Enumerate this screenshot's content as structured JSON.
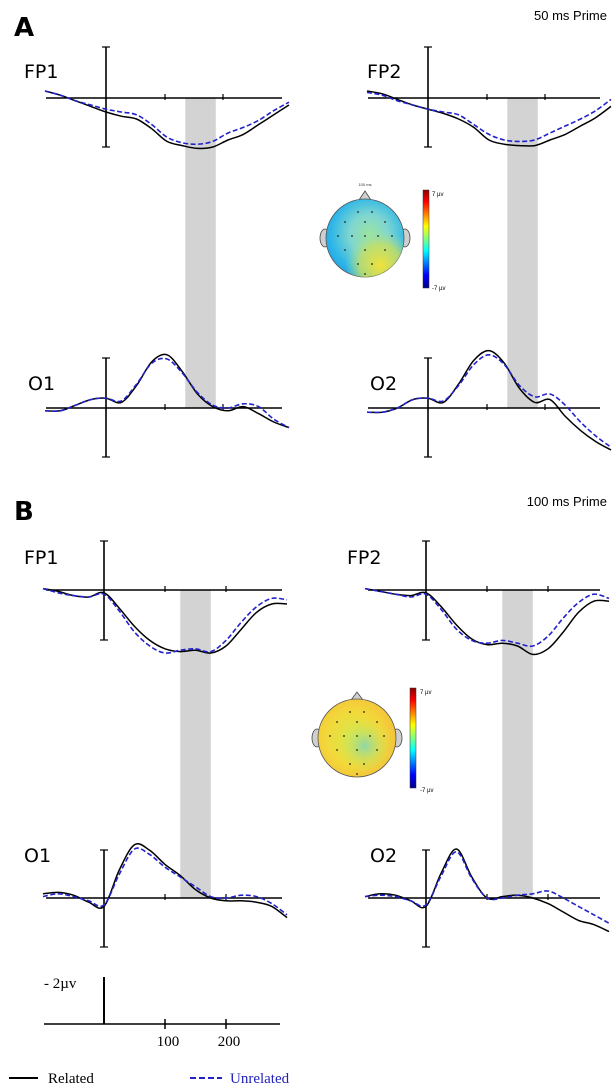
{
  "panels": [
    {
      "letter": "A",
      "condition": "50 ms Prime",
      "topo": {
        "title": "100 ms",
        "cbar_max": "7 µv",
        "cbar_min": "-7 µv"
      }
    },
    {
      "letter": "B",
      "condition": "100 ms Prime",
      "topo": {
        "title": "",
        "cbar_max": "7 µv",
        "cbar_min": "-7 µv"
      }
    }
  ],
  "scale": {
    "amplitude": "2µv",
    "tick_labels": [
      "100",
      "200"
    ]
  },
  "legend": {
    "related": "Related",
    "unrelated": "Unrelated"
  },
  "colors": {
    "related": "#000000",
    "unrelated": "#2222cc",
    "highlight": "#d3d3d3"
  },
  "chart_data": [
    {
      "type": "line",
      "panel": "A",
      "x_unit": "ms",
      "y_unit": "µV",
      "highlight_window": [
        130,
        180
      ],
      "plots": [
        {
          "channel": "FP1",
          "x": [
            -100,
            -75,
            -50,
            -25,
            0,
            25,
            50,
            75,
            100,
            125,
            150,
            175,
            200,
            225,
            250,
            275,
            300
          ],
          "series": [
            {
              "name": "Related",
              "values": [
                0.5,
                0.2,
                -0.2,
                -0.6,
                -1.0,
                -1.3,
                -1.5,
                -2.2,
                -3.1,
                -3.4,
                -3.6,
                -3.5,
                -3.0,
                -2.6,
                -1.9,
                -1.2,
                -0.5
              ]
            },
            {
              "name": "Unrelated",
              "values": [
                0.5,
                0.2,
                -0.2,
                -0.5,
                -0.8,
                -1.0,
                -1.2,
                -1.9,
                -2.8,
                -3.2,
                -3.3,
                -3.1,
                -2.5,
                -2.1,
                -1.6,
                -0.9,
                -0.3
              ]
            }
          ]
        },
        {
          "channel": "FP2",
          "x": [
            -100,
            -75,
            -50,
            -25,
            0,
            25,
            50,
            75,
            100,
            125,
            150,
            175,
            200,
            225,
            250,
            275,
            300
          ],
          "series": [
            {
              "name": "Related",
              "values": [
                0.5,
                0.3,
                -0.1,
                -0.5,
                -0.8,
                -1.1,
                -1.5,
                -2.1,
                -3.0,
                -3.3,
                -3.4,
                -3.4,
                -3.0,
                -2.6,
                -2.0,
                -1.4,
                -0.6
              ]
            },
            {
              "name": "Unrelated",
              "values": [
                0.4,
                0.2,
                -0.2,
                -0.5,
                -0.8,
                -1.0,
                -1.2,
                -1.9,
                -2.6,
                -3.0,
                -3.1,
                -3.0,
                -2.5,
                -2.0,
                -1.5,
                -0.9,
                -0.1
              ]
            }
          ]
        },
        {
          "channel": "O1",
          "x": [
            -100,
            -75,
            -50,
            -25,
            0,
            25,
            50,
            75,
            100,
            125,
            150,
            175,
            200,
            225,
            250,
            275,
            300
          ],
          "series": [
            {
              "name": "Related",
              "values": [
                -0.2,
                -0.2,
                0.2,
                0.6,
                0.7,
                0.4,
                1.6,
                3.3,
                3.8,
                2.6,
                1.0,
                0.1,
                -0.2,
                0.1,
                -0.4,
                -1.0,
                -1.4
              ]
            },
            {
              "name": "Unrelated",
              "values": [
                -0.2,
                -0.2,
                0.2,
                0.6,
                0.7,
                0.5,
                1.7,
                3.2,
                3.5,
                2.5,
                1.1,
                0.2,
                0.0,
                0.3,
                0.1,
                -0.8,
                -1.4
              ]
            }
          ]
        },
        {
          "channel": "O2",
          "x": [
            -100,
            -75,
            -50,
            -25,
            0,
            25,
            50,
            75,
            100,
            125,
            150,
            175,
            200,
            225,
            250,
            275,
            300
          ],
          "series": [
            {
              "name": "Related",
              "values": [
                -0.3,
                -0.3,
                0.0,
                0.6,
                0.7,
                0.4,
                1.7,
                3.4,
                4.1,
                3.2,
                1.4,
                0.4,
                0.6,
                -0.6,
                -1.6,
                -2.4,
                -3.0
              ]
            },
            {
              "name": "Unrelated",
              "values": [
                -0.3,
                -0.3,
                0.0,
                0.6,
                0.7,
                0.5,
                1.6,
                3.1,
                3.8,
                3.1,
                1.6,
                0.8,
                1.0,
                0.2,
                -1.0,
                -2.0,
                -2.8
              ]
            }
          ]
        }
      ]
    },
    {
      "type": "line",
      "panel": "B",
      "x_unit": "ms",
      "y_unit": "µV",
      "highlight_window": [
        125,
        175
      ],
      "plots": [
        {
          "channel": "FP1",
          "x": [
            -100,
            -75,
            -50,
            -25,
            0,
            25,
            50,
            75,
            100,
            125,
            150,
            175,
            200,
            225,
            250,
            275,
            300
          ],
          "series": [
            {
              "name": "Related",
              "values": [
                0.1,
                -0.1,
                -0.4,
                -0.5,
                -0.2,
                -1.3,
                -2.6,
                -3.6,
                -4.2,
                -4.4,
                -4.3,
                -4.5,
                -4.0,
                -2.8,
                -1.6,
                -1.0,
                -1.0
              ]
            },
            {
              "name": "Unrelated",
              "values": [
                0.1,
                -0.2,
                -0.4,
                -0.5,
                -0.3,
                -1.5,
                -3.0,
                -4.0,
                -4.5,
                -4.3,
                -4.2,
                -4.4,
                -3.6,
                -2.3,
                -1.2,
                -0.6,
                -0.7
              ]
            }
          ]
        },
        {
          "channel": "FP2",
          "x": [
            -100,
            -75,
            -50,
            -25,
            0,
            25,
            50,
            75,
            100,
            125,
            150,
            175,
            200,
            225,
            250,
            275,
            300
          ],
          "series": [
            {
              "name": "Related",
              "values": [
                0.1,
                -0.1,
                -0.3,
                -0.4,
                -0.2,
                -1.2,
                -2.5,
                -3.5,
                -3.9,
                -3.8,
                -4.0,
                -4.6,
                -4.2,
                -3.0,
                -1.6,
                -0.8,
                -0.8
              ]
            },
            {
              "name": "Unrelated",
              "values": [
                0.1,
                -0.1,
                -0.3,
                -0.5,
                -0.3,
                -1.4,
                -2.8,
                -3.6,
                -3.8,
                -3.6,
                -3.8,
                -4.0,
                -3.3,
                -2.0,
                -0.9,
                -0.3,
                -0.6
              ]
            }
          ]
        },
        {
          "channel": "O1",
          "x": [
            -100,
            -75,
            -50,
            -25,
            0,
            25,
            50,
            75,
            100,
            125,
            150,
            175,
            200,
            225,
            250,
            275,
            300
          ],
          "series": [
            {
              "name": "Related",
              "values": [
                0.3,
                0.4,
                0.2,
                -0.3,
                -0.6,
                2.0,
                3.8,
                3.4,
                2.4,
                1.6,
                0.6,
                0.0,
                -0.2,
                -0.2,
                -0.3,
                -0.6,
                -1.4
              ]
            },
            {
              "name": "Unrelated",
              "values": [
                0.1,
                0.3,
                0.1,
                -0.2,
                -0.5,
                1.7,
                3.5,
                3.1,
                2.2,
                1.5,
                0.8,
                0.1,
                0.0,
                0.2,
                0.1,
                -0.4,
                -1.2
              ]
            }
          ]
        },
        {
          "channel": "O2",
          "x": [
            -100,
            -75,
            -50,
            -25,
            0,
            25,
            50,
            75,
            100,
            125,
            150,
            175,
            200,
            225,
            250,
            275,
            300
          ],
          "series": [
            {
              "name": "Related",
              "values": [
                0.1,
                0.3,
                0.2,
                -0.2,
                -0.6,
                1.8,
                3.5,
                1.5,
                0.0,
                0.1,
                0.2,
                0.0,
                -0.4,
                -1.0,
                -1.6,
                -1.9,
                -2.4
              ]
            },
            {
              "name": "Unrelated",
              "values": [
                0.1,
                0.2,
                0.1,
                -0.2,
                -0.5,
                1.6,
                3.3,
                1.4,
                0.0,
                0.0,
                0.2,
                0.3,
                0.5,
                0.0,
                -0.6,
                -1.2,
                -1.8
              ]
            }
          ]
        }
      ]
    }
  ]
}
